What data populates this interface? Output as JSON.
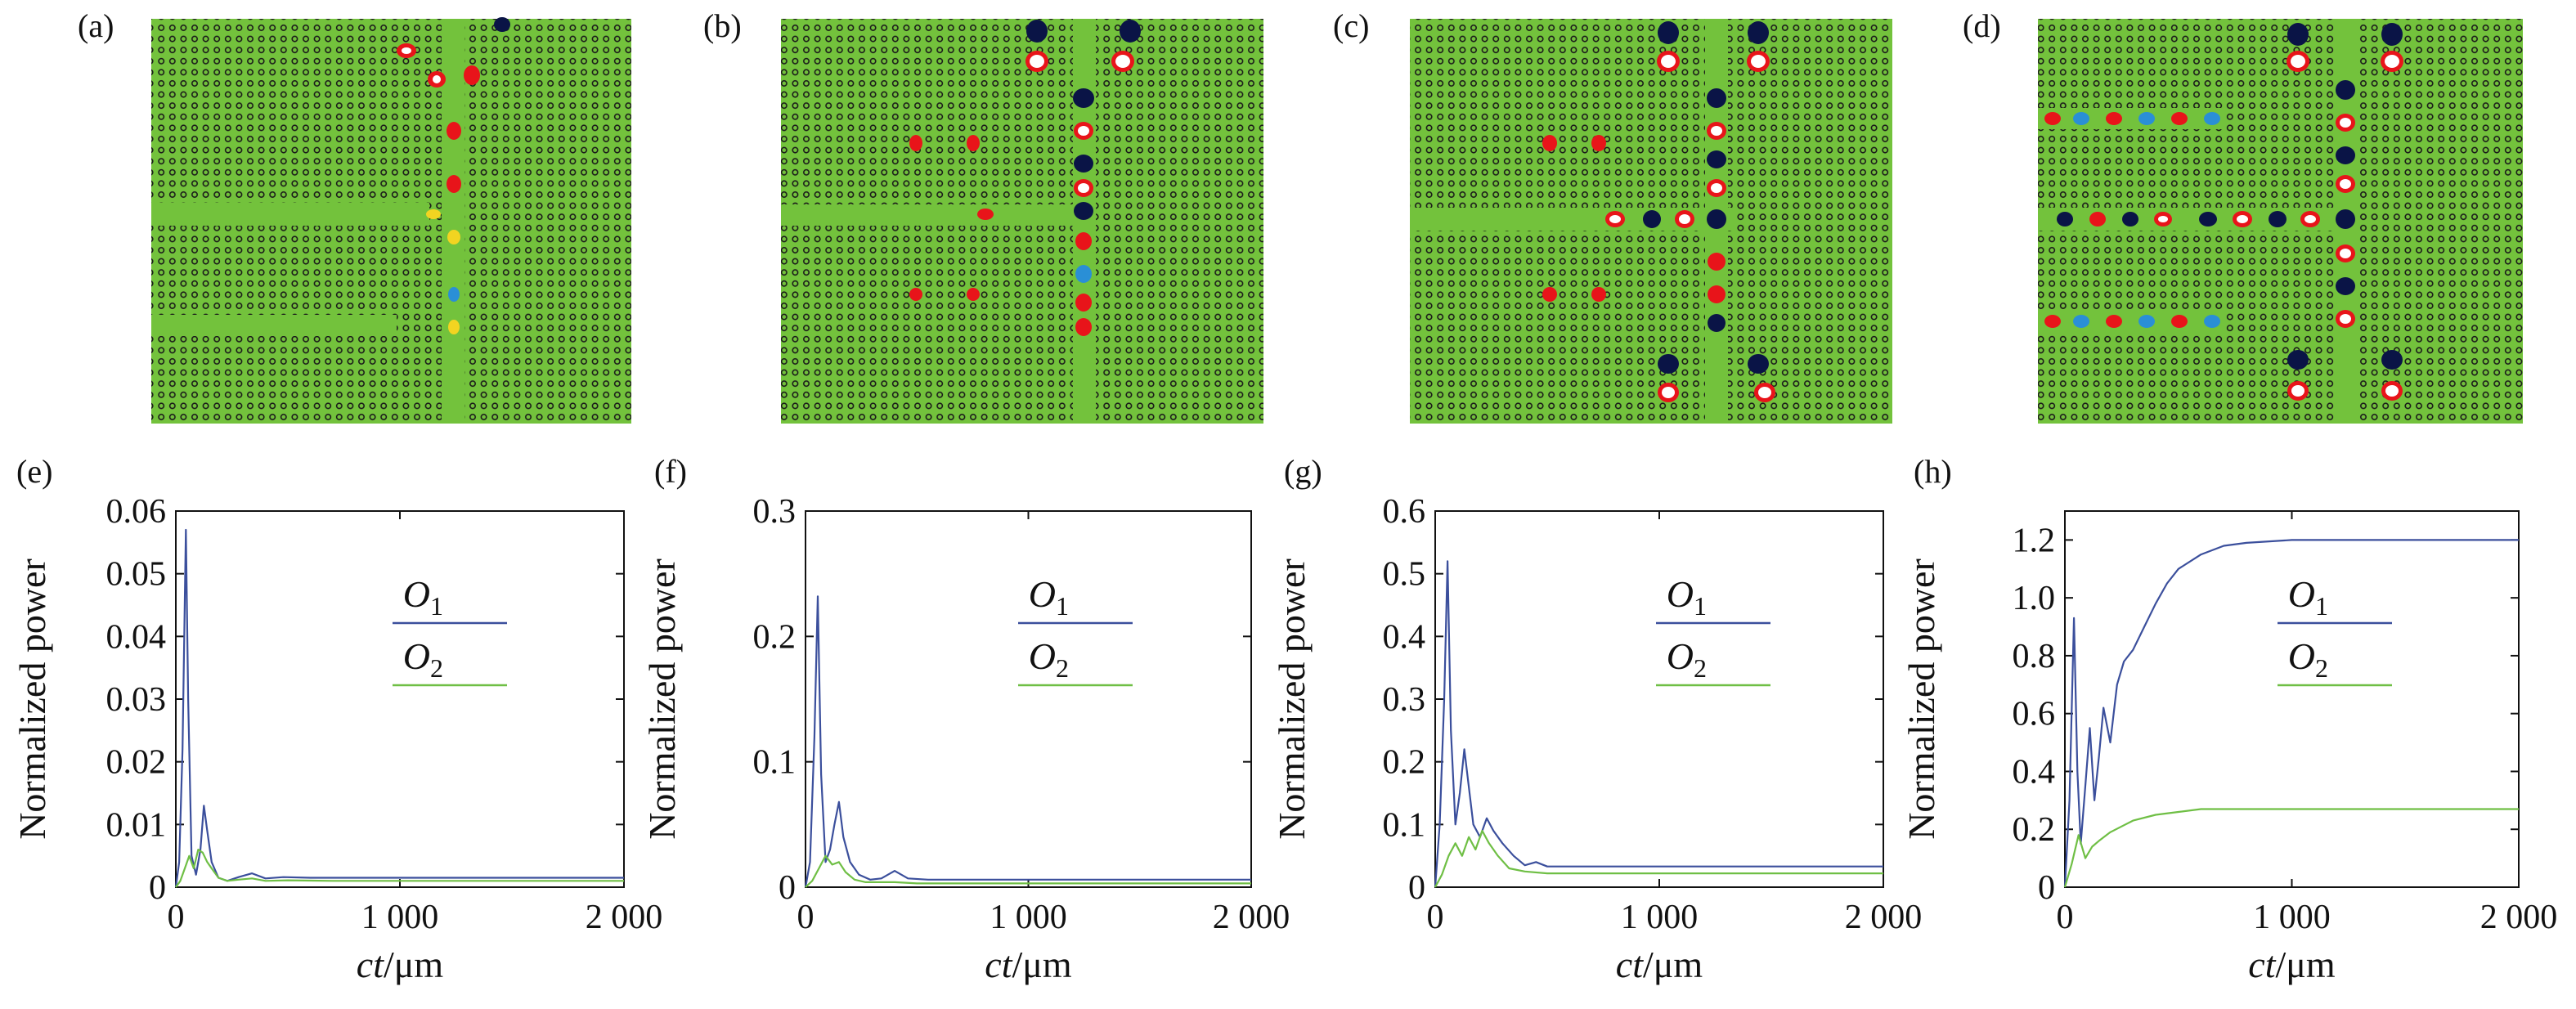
{
  "figure": {
    "panel_labels": [
      "(a)",
      "(b)",
      "(c)",
      "(d)",
      "(e)",
      "(f)",
      "(g)",
      "(h)"
    ],
    "field_colors": {
      "background": "#73c23c",
      "hole": "#1a1a1a",
      "red": "#e8141a",
      "yellow": "#f2d421",
      "blue": "#2a8fd6",
      "dark": "#0a1446",
      "white": "#ffffff"
    }
  },
  "chart_data": [
    {
      "type": "line",
      "panel": "(e)",
      "xlabel_main": "ct",
      "xlabel_unit": "/μm",
      "ylabel": "Normalized power",
      "xlim": [
        0,
        2000
      ],
      "ylim": [
        0,
        0.06
      ],
      "xticks": [
        0,
        1000,
        2000
      ],
      "xtick_labels": [
        "0",
        "1 000",
        "2 000"
      ],
      "yticks": [
        0,
        0.01,
        0.02,
        0.03,
        0.04,
        0.05,
        0.06
      ],
      "ytick_labels": [
        "0",
        "0.01",
        "0.02",
        "0.03",
        "0.04",
        "0.05",
        "0.06"
      ],
      "legend_position": "right",
      "series": [
        {
          "name": "O",
          "sub": "1",
          "color": "#3b4f9c",
          "x": [
            0,
            15,
            30,
            45,
            55,
            70,
            90,
            110,
            125,
            140,
            160,
            190,
            230,
            280,
            340,
            400,
            480,
            600,
            800,
            1200,
            2000
          ],
          "y": [
            0,
            0.004,
            0.022,
            0.057,
            0.03,
            0.005,
            0.002,
            0.006,
            0.013,
            0.009,
            0.004,
            0.0015,
            0.001,
            0.0016,
            0.0022,
            0.0014,
            0.0016,
            0.0015,
            0.0015,
            0.0015,
            0.0015
          ]
        },
        {
          "name": "O",
          "sub": "2",
          "color": "#6fbf45",
          "x": [
            0,
            20,
            40,
            60,
            80,
            100,
            120,
            140,
            160,
            190,
            230,
            280,
            340,
            400,
            500,
            700,
            1000,
            2000
          ],
          "y": [
            0,
            0.001,
            0.003,
            0.005,
            0.003,
            0.006,
            0.0055,
            0.004,
            0.003,
            0.0015,
            0.001,
            0.0012,
            0.0014,
            0.001,
            0.0011,
            0.001,
            0.001,
            0.001
          ]
        }
      ]
    },
    {
      "type": "line",
      "panel": "(f)",
      "xlabel_main": "ct",
      "xlabel_unit": "/μm",
      "ylabel": "Normalized power",
      "xlim": [
        0,
        2000
      ],
      "ylim": [
        0,
        0.3
      ],
      "xticks": [
        0,
        1000,
        2000
      ],
      "xtick_labels": [
        "0",
        "1 000",
        "2 000"
      ],
      "yticks": [
        0,
        0.1,
        0.2,
        0.3
      ],
      "ytick_labels": [
        "0",
        "0.1",
        "0.2",
        "0.3"
      ],
      "legend_position": "right",
      "series": [
        {
          "name": "O",
          "sub": "1",
          "color": "#3b4f9c",
          "x": [
            0,
            20,
            40,
            55,
            70,
            90,
            110,
            130,
            150,
            170,
            200,
            240,
            290,
            340,
            400,
            460,
            550,
            700,
            1000,
            1500,
            2000
          ],
          "y": [
            0,
            0.02,
            0.12,
            0.232,
            0.09,
            0.02,
            0.03,
            0.05,
            0.068,
            0.04,
            0.02,
            0.01,
            0.006,
            0.007,
            0.013,
            0.007,
            0.006,
            0.006,
            0.006,
            0.006,
            0.006
          ]
        },
        {
          "name": "O",
          "sub": "2",
          "color": "#6fbf45",
          "x": [
            0,
            30,
            60,
            90,
            120,
            150,
            180,
            220,
            270,
            330,
            400,
            500,
            700,
            1000,
            2000
          ],
          "y": [
            0,
            0.005,
            0.015,
            0.025,
            0.018,
            0.02,
            0.012,
            0.006,
            0.004,
            0.004,
            0.004,
            0.003,
            0.003,
            0.003,
            0.003
          ]
        }
      ]
    },
    {
      "type": "line",
      "panel": "(g)",
      "xlabel_main": "ct",
      "xlabel_unit": "/μm",
      "ylabel": "Normalized power",
      "xlim": [
        0,
        2000
      ],
      "ylim": [
        0,
        0.6
      ],
      "xticks": [
        0,
        1000,
        2000
      ],
      "xtick_labels": [
        "0",
        "1 000",
        "2 000"
      ],
      "yticks": [
        0,
        0.1,
        0.2,
        0.3,
        0.4,
        0.5,
        0.6
      ],
      "ytick_labels": [
        "0",
        "0.1",
        "0.2",
        "0.3",
        "0.4",
        "0.5",
        "0.6"
      ],
      "legend_position": "right",
      "series": [
        {
          "name": "O",
          "sub": "1",
          "color": "#3b4f9c",
          "x": [
            0,
            20,
            40,
            55,
            70,
            90,
            110,
            130,
            150,
            170,
            200,
            230,
            260,
            300,
            350,
            400,
            450,
            500,
            600,
            800,
            1200,
            2000
          ],
          "y": [
            0,
            0.1,
            0.3,
            0.52,
            0.25,
            0.1,
            0.15,
            0.22,
            0.16,
            0.1,
            0.08,
            0.11,
            0.09,
            0.07,
            0.05,
            0.035,
            0.04,
            0.033,
            0.033,
            0.033,
            0.033,
            0.033
          ]
        },
        {
          "name": "O",
          "sub": "2",
          "color": "#6fbf45",
          "x": [
            0,
            30,
            60,
            90,
            120,
            150,
            180,
            210,
            240,
            280,
            330,
            400,
            500,
            700,
            1000,
            2000
          ],
          "y": [
            0,
            0.02,
            0.05,
            0.07,
            0.05,
            0.08,
            0.06,
            0.09,
            0.07,
            0.05,
            0.03,
            0.025,
            0.022,
            0.022,
            0.022,
            0.022
          ]
        }
      ]
    },
    {
      "type": "line",
      "panel": "(h)",
      "xlabel_main": "ct",
      "xlabel_unit": "/μm",
      "ylabel": "Normalized power",
      "xlim": [
        0,
        2000
      ],
      "ylim": [
        0,
        1.3
      ],
      "xticks": [
        0,
        1000,
        2000
      ],
      "xtick_labels": [
        "0",
        "1 000",
        "2 000"
      ],
      "yticks": [
        0,
        0.2,
        0.4,
        0.6,
        0.8,
        1.0,
        1.2
      ],
      "ytick_labels": [
        "0",
        "0.2",
        "0.4",
        "0.6",
        "0.8",
        "1.0",
        "1.2"
      ],
      "legend_position": "right",
      "series": [
        {
          "name": "O",
          "sub": "1",
          "color": "#3b4f9c",
          "x": [
            0,
            20,
            40,
            55,
            70,
            90,
            110,
            130,
            150,
            170,
            200,
            230,
            260,
            300,
            350,
            400,
            450,
            500,
            600,
            700,
            800,
            1000,
            1200,
            1600,
            2000
          ],
          "y": [
            0,
            0.3,
            0.93,
            0.4,
            0.15,
            0.35,
            0.55,
            0.3,
            0.45,
            0.62,
            0.5,
            0.7,
            0.78,
            0.82,
            0.9,
            0.98,
            1.05,
            1.1,
            1.15,
            1.18,
            1.19,
            1.2,
            1.2,
            1.2,
            1.2
          ]
        },
        {
          "name": "O",
          "sub": "2",
          "color": "#6fbf45",
          "x": [
            0,
            30,
            60,
            90,
            120,
            150,
            200,
            250,
            300,
            400,
            500,
            600,
            800,
            1000,
            1500,
            2000
          ],
          "y": [
            0,
            0.08,
            0.18,
            0.1,
            0.14,
            0.16,
            0.19,
            0.21,
            0.23,
            0.25,
            0.26,
            0.27,
            0.27,
            0.27,
            0.27,
            0.27
          ]
        }
      ]
    }
  ]
}
